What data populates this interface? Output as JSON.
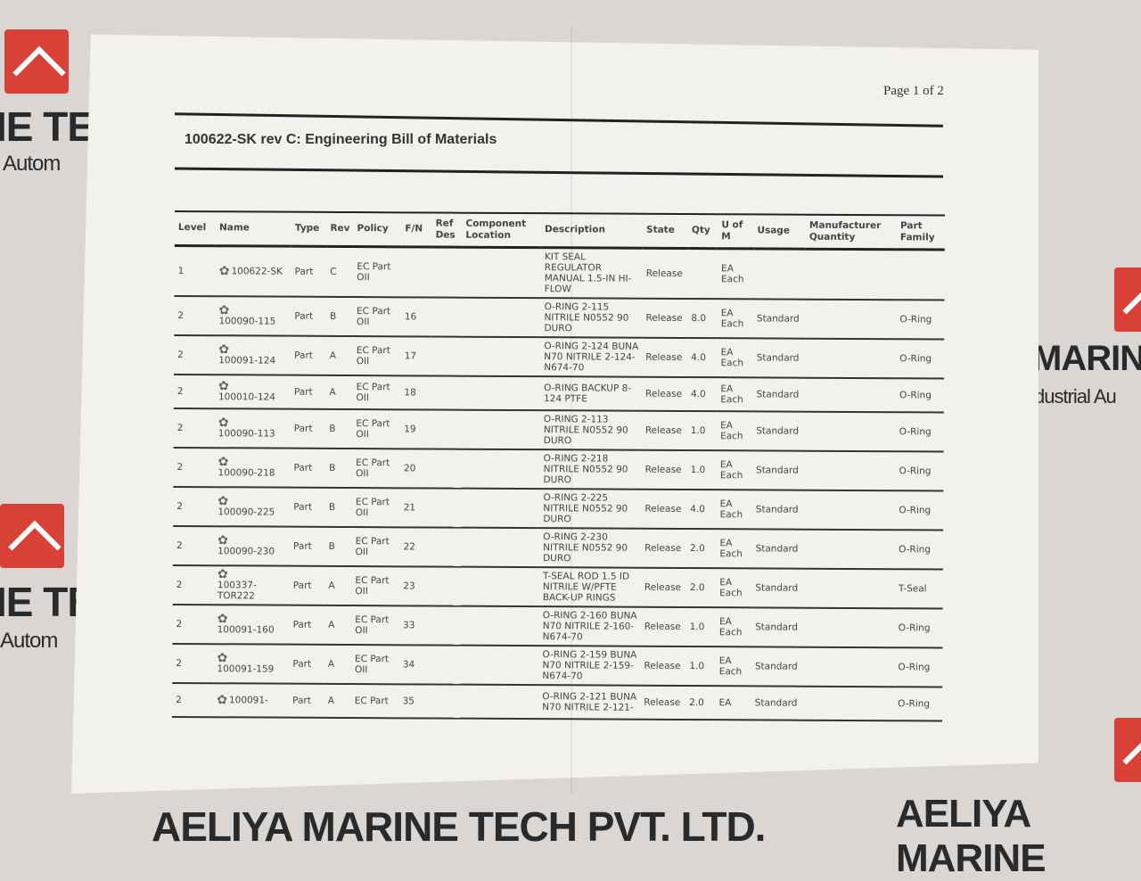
{
  "background": {
    "brand_text": "AELIYA MARINE TECH PVT. LTD.",
    "brand_text_right": "AELIYA MARINE",
    "partial_left_1": "IE TE",
    "partial_left_2": "Autom",
    "partial_right_1": "MARINE",
    "partial_right_2": "dustrial Au",
    "logo_color": "#d94036"
  },
  "document": {
    "page_label": "Page 1 of 2",
    "title": "100622-SK rev C: Engineering Bill of Materials",
    "columns": [
      "Level",
      "Name",
      "Type",
      "Rev",
      "Policy",
      "F/N",
      "Ref Des",
      "Component Location",
      "Description",
      "State",
      "Qty",
      "U of M",
      "Usage",
      "Manufacturer Quantity",
      "Part Family"
    ],
    "rows": [
      {
        "level": "1",
        "name": "100622-SK",
        "type": "Part",
        "rev": "C",
        "policy": "EC Part OII",
        "fn": "",
        "refdes": "",
        "loc": "",
        "desc": "KIT SEAL REGULATOR MANUAL 1.5-IN HI-FLOW",
        "state": "Release",
        "qty": "",
        "uom": "EA Each",
        "usage": "",
        "mfq": "",
        "family": ""
      },
      {
        "level": "2",
        "name": "100090-115",
        "type": "Part",
        "rev": "B",
        "policy": "EC Part OII",
        "fn": "16",
        "refdes": "",
        "loc": "",
        "desc": "O-RING 2-115 NITRILE N0552 90 DURO",
        "state": "Release",
        "qty": "8.0",
        "uom": "EA Each",
        "usage": "Standard",
        "mfq": "",
        "family": "O-Ring"
      },
      {
        "level": "2",
        "name": "100091-124",
        "type": "Part",
        "rev": "A",
        "policy": "EC Part OII",
        "fn": "17",
        "refdes": "",
        "loc": "",
        "desc": "O-RING 2-124 BUNA N70 NITRILE 2-124-N674-70",
        "state": "Release",
        "qty": "4.0",
        "uom": "EA Each",
        "usage": "Standard",
        "mfq": "",
        "family": "O-Ring"
      },
      {
        "level": "2",
        "name": "100010-124",
        "type": "Part",
        "rev": "A",
        "policy": "EC Part OII",
        "fn": "18",
        "refdes": "",
        "loc": "",
        "desc": "O-RING BACKUP 8-124 PTFE",
        "state": "Release",
        "qty": "4.0",
        "uom": "EA Each",
        "usage": "Standard",
        "mfq": "",
        "family": "O-Ring"
      },
      {
        "level": "2",
        "name": "100090-113",
        "type": "Part",
        "rev": "B",
        "policy": "EC Part OII",
        "fn": "19",
        "refdes": "",
        "loc": "",
        "desc": "O-RING 2-113 NITRILE N0552 90 DURO",
        "state": "Release",
        "qty": "1.0",
        "uom": "EA Each",
        "usage": "Standard",
        "mfq": "",
        "family": "O-Ring"
      },
      {
        "level": "2",
        "name": "100090-218",
        "type": "Part",
        "rev": "B",
        "policy": "EC Part OII",
        "fn": "20",
        "refdes": "",
        "loc": "",
        "desc": "O-RING 2-218 NITRILE N0552 90 DURO",
        "state": "Release",
        "qty": "1.0",
        "uom": "EA Each",
        "usage": "Standard",
        "mfq": "",
        "family": "O-Ring"
      },
      {
        "level": "2",
        "name": "100090-225",
        "type": "Part",
        "rev": "B",
        "policy": "EC Part OII",
        "fn": "21",
        "refdes": "",
        "loc": "",
        "desc": "O-RING 2-225 NITRILE N0552 90 DURO",
        "state": "Release",
        "qty": "4.0",
        "uom": "EA Each",
        "usage": "Standard",
        "mfq": "",
        "family": "O-Ring"
      },
      {
        "level": "2",
        "name": "100090-230",
        "type": "Part",
        "rev": "B",
        "policy": "EC Part OII",
        "fn": "22",
        "refdes": "",
        "loc": "",
        "desc": "O-RING 2-230 NITRILE N0552 90 DURO",
        "state": "Release",
        "qty": "2.0",
        "uom": "EA Each",
        "usage": "Standard",
        "mfq": "",
        "family": "O-Ring"
      },
      {
        "level": "2",
        "name": "100337-TOR222",
        "type": "Part",
        "rev": "A",
        "policy": "EC Part OII",
        "fn": "23",
        "refdes": "",
        "loc": "",
        "desc": "T-SEAL ROD 1.5 ID NITRILE W/PFTE BACK-UP RINGS",
        "state": "Release",
        "qty": "2.0",
        "uom": "EA Each",
        "usage": "Standard",
        "mfq": "",
        "family": "T-Seal"
      },
      {
        "level": "2",
        "name": "100091-160",
        "type": "Part",
        "rev": "A",
        "policy": "EC Part OII",
        "fn": "33",
        "refdes": "",
        "loc": "",
        "desc": "O-RING 2-160 BUNA N70 NITRILE 2-160-N674-70",
        "state": "Release",
        "qty": "1.0",
        "uom": "EA Each",
        "usage": "Standard",
        "mfq": "",
        "family": "O-Ring"
      },
      {
        "level": "2",
        "name": "100091-159",
        "type": "Part",
        "rev": "A",
        "policy": "EC Part OII",
        "fn": "34",
        "refdes": "",
        "loc": "",
        "desc": "O-RING 2-159 BUNA N70 NITRILE 2-159-N674-70",
        "state": "Release",
        "qty": "1.0",
        "uom": "EA Each",
        "usage": "Standard",
        "mfq": "",
        "family": "O-Ring"
      },
      {
        "level": "2",
        "name": "100091-",
        "type": "Part",
        "rev": "A",
        "policy": "EC Part",
        "fn": "35",
        "refdes": "",
        "loc": "",
        "desc": "O-RING 2-121 BUNA N70 NITRILE 2-121-",
        "state": "Release",
        "qty": "2.0",
        "uom": "EA",
        "usage": "Standard",
        "mfq": "",
        "family": "O-Ring"
      }
    ]
  }
}
